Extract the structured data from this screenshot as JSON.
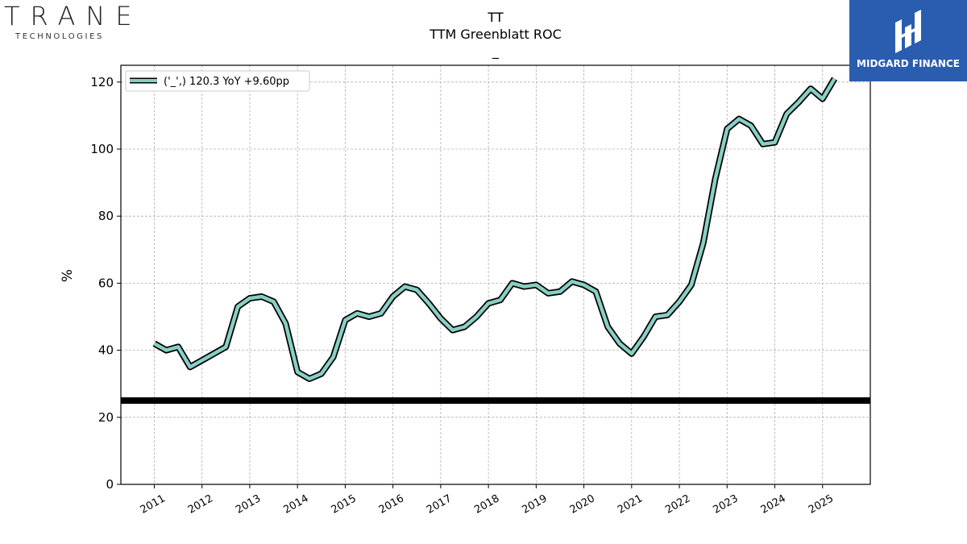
{
  "brand_left": {
    "wordmark": "TRANE",
    "subtitle": "TECHNOLOGIES"
  },
  "brand_right": {
    "name": "MIDGARD FINANCE"
  },
  "chart_data": {
    "type": "line",
    "title_lines": [
      "TT",
      "TTM Greenblatt ROC",
      "_"
    ],
    "ylabel": "%",
    "xlabel": "",
    "ylim": [
      0,
      125
    ],
    "yticks": [
      0,
      20,
      40,
      60,
      80,
      100,
      120
    ],
    "xlim": [
      2010.3,
      2026.0
    ],
    "xticks": [
      2011,
      2012,
      2013,
      2014,
      2015,
      2016,
      2017,
      2018,
      2019,
      2020,
      2021,
      2022,
      2023,
      2024,
      2025
    ],
    "grid": true,
    "legend": {
      "placement": "top-left",
      "label": "('_',) 120.3 YoY +9.60pp"
    },
    "reference_line": {
      "y": 25,
      "color": "#000000"
    },
    "colors": {
      "series": "#88cfc4",
      "outline": "#000000"
    },
    "series": [
      {
        "x": [
          2011.0,
          2011.25,
          2011.5,
          2011.75,
          2012.0,
          2012.25,
          2012.5,
          2012.75,
          2013.0,
          2013.25,
          2013.5,
          2013.75,
          2014.0,
          2014.25,
          2014.5,
          2014.75,
          2015.0,
          2015.25,
          2015.5,
          2015.75,
          2016.0,
          2016.25,
          2016.5,
          2016.75,
          2017.0,
          2017.25,
          2017.5,
          2017.75,
          2018.0,
          2018.25,
          2018.5,
          2018.75,
          2019.0,
          2019.25,
          2019.5,
          2019.75,
          2020.0,
          2020.25,
          2020.5,
          2020.75,
          2021.0,
          2021.25,
          2021.5,
          2021.75,
          2022.0,
          2022.25,
          2022.5,
          2022.75,
          2023.0,
          2023.25,
          2023.5,
          2023.75,
          2024.0,
          2024.25,
          2024.5,
          2024.75,
          2025.0,
          2025.25
        ],
        "values": [
          42,
          40,
          41,
          35,
          37,
          39,
          41,
          53,
          55.5,
          56,
          54.5,
          48,
          33.5,
          31.5,
          33,
          38,
          49,
          51,
          50,
          51,
          56,
          59,
          58,
          54,
          49.5,
          46,
          47,
          50,
          54,
          55,
          60,
          59,
          59.5,
          57,
          57.5,
          60.5,
          59.5,
          57.5,
          47,
          42,
          39,
          44,
          50,
          50.5,
          54.5,
          59.5,
          72,
          91,
          106,
          109,
          107,
          101.5,
          102,
          110.5,
          114,
          118,
          115,
          121
        ]
      }
    ]
  }
}
